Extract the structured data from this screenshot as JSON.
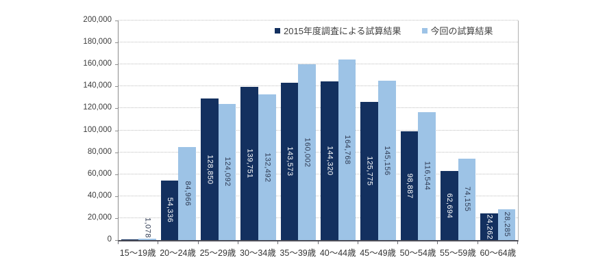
{
  "chart_data": {
    "type": "bar",
    "title": "",
    "categories": [
      "15〜19歳",
      "20〜24歳",
      "25〜29歳",
      "30〜34歳",
      "35〜39歳",
      "40〜44歳",
      "45〜49歳",
      "50〜54歳",
      "55〜59歳",
      "60〜64歳"
    ],
    "series": [
      {
        "name": "2015年度調査による試算結果",
        "color": "#13305f",
        "label_color": "#ffffff",
        "values": [
          700,
          54336,
          128850,
          139751,
          143573,
          144320,
          125775,
          98887,
          62694,
          24262
        ],
        "labels": [
          "",
          "54,336",
          "128,850",
          "139,751",
          "143,573",
          "144,320",
          "125,775",
          "98,887",
          "62,694",
          "24,262"
        ]
      },
      {
        "name": "今回の試算結果",
        "color": "#9dc3e6",
        "label_color": "#2e3a52",
        "values": [
          1078,
          84966,
          124092,
          132492,
          160002,
          164768,
          145156,
          116544,
          74155,
          28285
        ],
        "labels": [
          "1,078",
          "84,966",
          "124,092",
          "132,492",
          "160,002",
          "164,768",
          "145,156",
          "116,544",
          "74,155",
          "28,285"
        ]
      }
    ],
    "ylim": [
      0,
      200000
    ],
    "ytick_step": 20000,
    "y_tick_labels": [
      "0",
      "20,000",
      "40,000",
      "60,000",
      "80,000",
      "100,000",
      "120,000",
      "140,000",
      "160,000",
      "180,000",
      "200,000"
    ],
    "xlabel": "",
    "ylabel": "",
    "grid": "horizontal-dotted",
    "legend_position": "top-inside-right",
    "outside_label_threshold": 15000
  }
}
